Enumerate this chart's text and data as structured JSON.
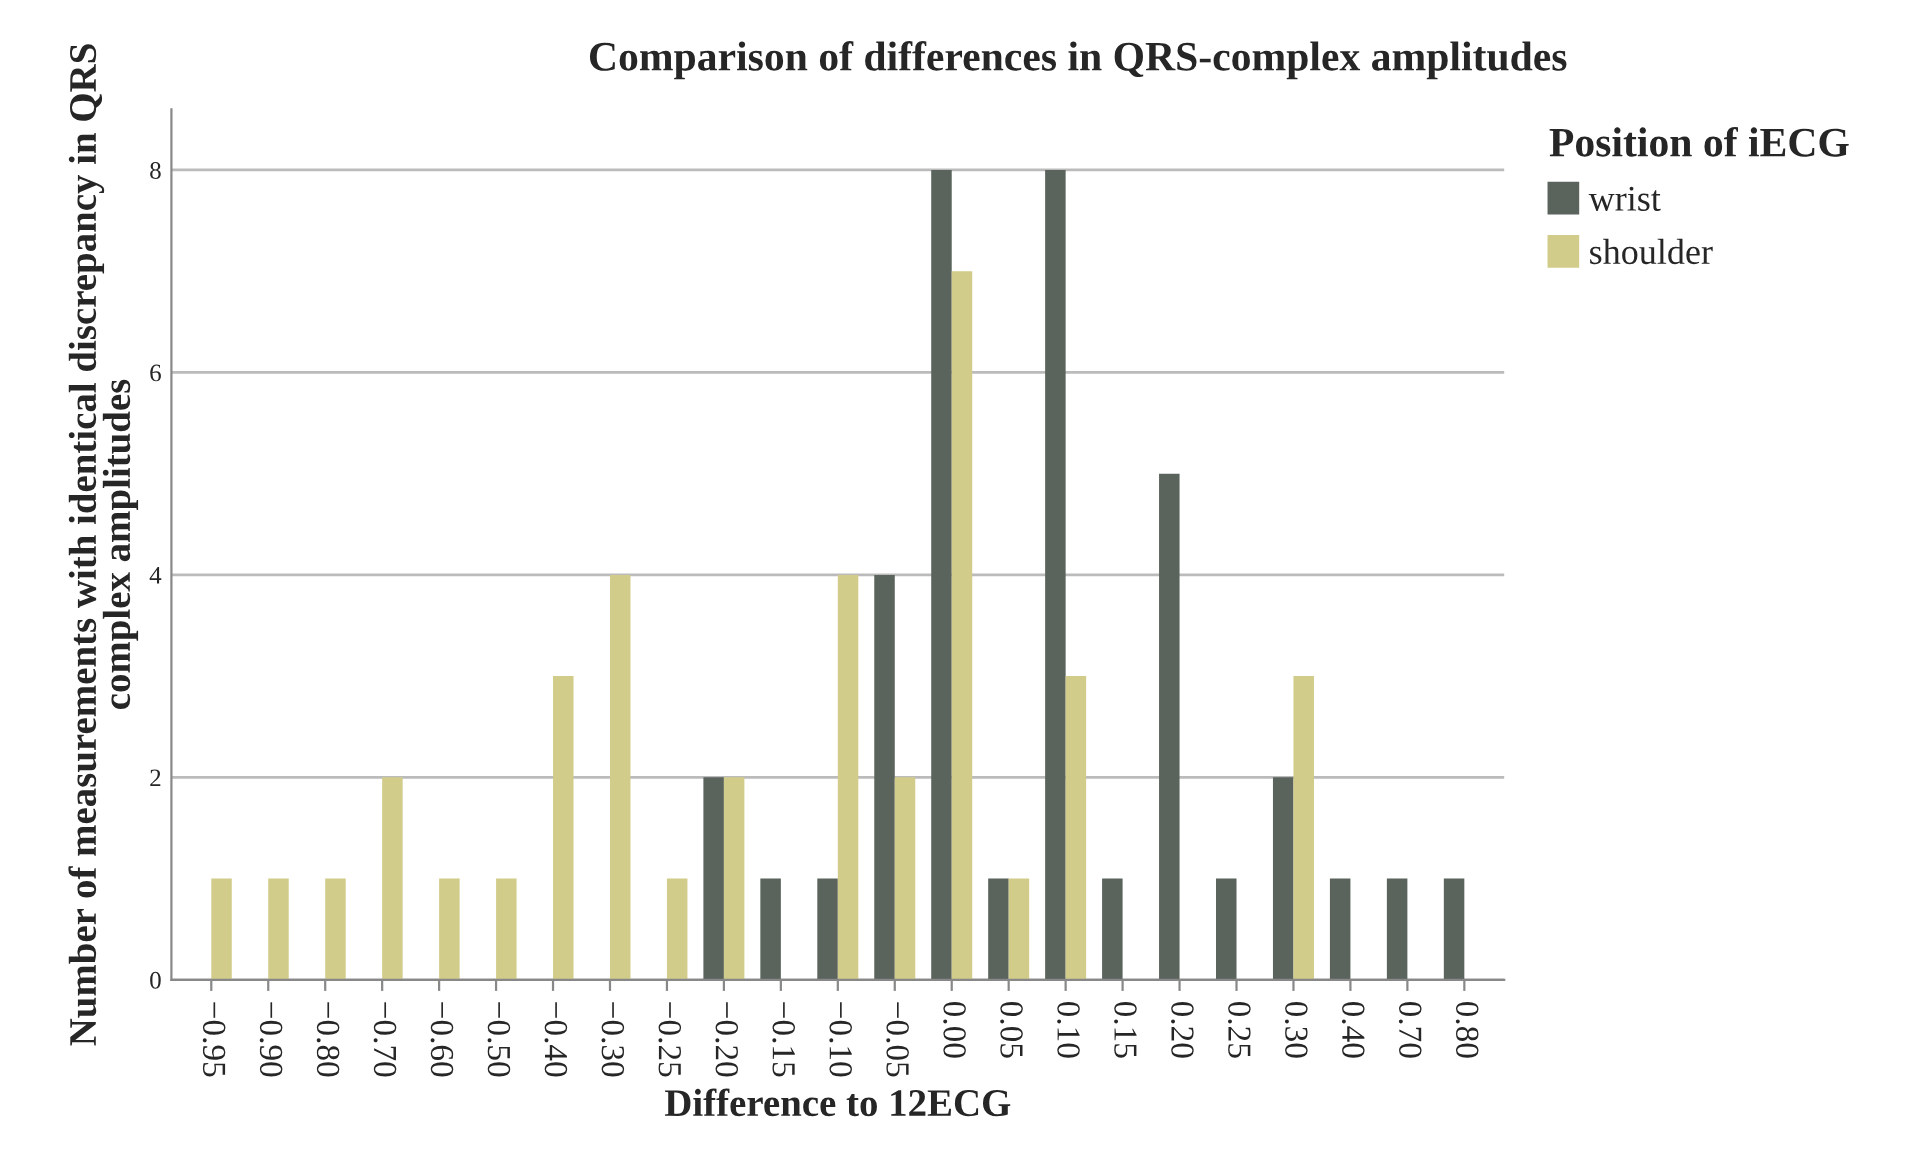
{
  "chart_data": {
    "type": "bar",
    "title": "Comparison of differences in QRS-complex amplitudes",
    "xlabel": "Difference to 12ECG",
    "ylabel": "Number of measurements with identical discrepancy in QRS complex amplitudes",
    "legend_title": "Position of iECG",
    "categories": [
      "−0.95",
      "−0.90",
      "−0.80",
      "−0.70",
      "−0.60",
      "−0.50",
      "−0.40",
      "−0.30",
      "−0.25",
      "−0.20",
      "−0.15",
      "−0.10",
      "−0.05",
      "0.00",
      "0.05",
      "0.10",
      "0.15",
      "0.20",
      "0.25",
      "0.30",
      "0.40",
      "0.70",
      "0.80"
    ],
    "series": [
      {
        "name": "wrist",
        "color": "#5a635c",
        "values": [
          null,
          null,
          null,
          null,
          null,
          null,
          null,
          null,
          null,
          2,
          1,
          1,
          4,
          8,
          1,
          8,
          1,
          5,
          1,
          2,
          1,
          1,
          1
        ]
      },
      {
        "name": "shoulder",
        "color": "#d2cc8a",
        "values": [
          1,
          1,
          1,
          2,
          1,
          1,
          3,
          4,
          1,
          2,
          null,
          4,
          2,
          7,
          1,
          3,
          null,
          null,
          null,
          3,
          null,
          null,
          null
        ]
      }
    ],
    "ylim": [
      0,
      8.6
    ],
    "yticks": [
      0,
      2,
      4,
      6,
      8
    ],
    "grid": "y",
    "legend": "top right"
  }
}
